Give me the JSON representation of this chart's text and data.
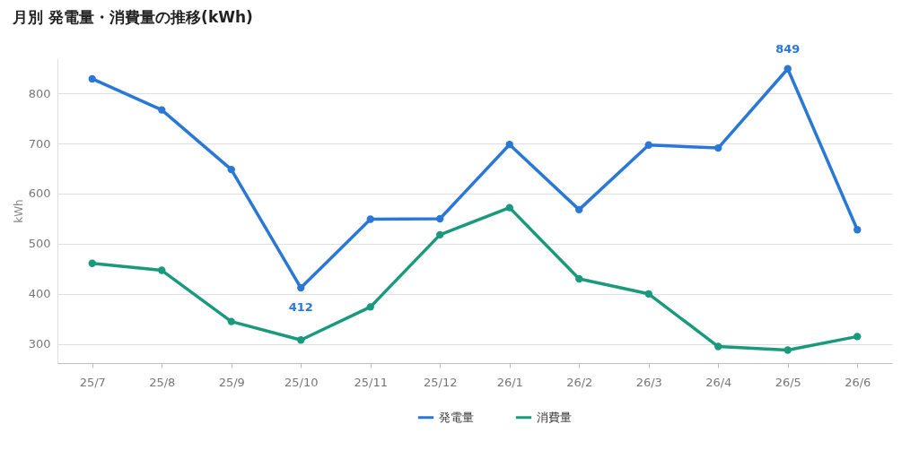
{
  "chart_data": {
    "type": "line",
    "title": "月別 発電量・消費量の推移(kWh)",
    "ylabel": "kWh",
    "categories": [
      "25/7",
      "25/8",
      "25/9",
      "25/10",
      "25/11",
      "25/12",
      "26/1",
      "26/2",
      "26/3",
      "26/4",
      "26/5",
      "26/6"
    ],
    "series": [
      {
        "name": "発電量",
        "color": "#2a78d6",
        "values": [
          829,
          767,
          648,
          412,
          549,
          550,
          698,
          568,
          697,
          691,
          849,
          528
        ],
        "value_labels": [
          null,
          null,
          null,
          "412",
          null,
          null,
          null,
          null,
          null,
          null,
          "849",
          null
        ]
      },
      {
        "name": "消費量",
        "color": "#1a9a7c",
        "values": [
          461,
          447,
          345,
          308,
          374,
          518,
          572,
          430,
          400,
          295,
          288,
          315
        ]
      }
    ],
    "ylim": [
      262,
      870
    ],
    "yticks": [
      300,
      400,
      500,
      600,
      700,
      800
    ],
    "grid": "y",
    "legend": "bottom",
    "marker": "circle",
    "line_style": "solid"
  }
}
